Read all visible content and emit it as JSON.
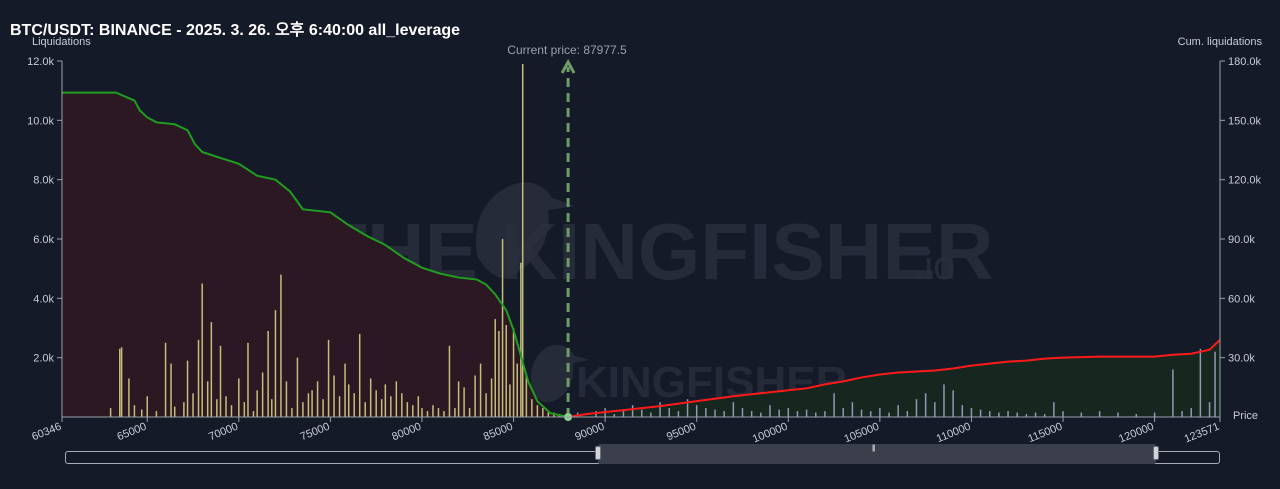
{
  "header": {
    "title": "BTC/USDT: BINANCE - 2025. 3. 26. 오후 6:40:00 all_leverage"
  },
  "watermark": {
    "brand": "THE KINGFISHER",
    "suffix": ".io",
    "small": "KINGFISHER"
  },
  "chart_data": {
    "type": "bar",
    "title": "BTC/USDT: BINANCE - 2025. 3. 26. 오후 6:40:00 all_leverage",
    "xlabel": "Price",
    "ylabel": "Liquidations",
    "y2label": "Cum. liquidations",
    "xlim": [
      60346,
      123571
    ],
    "ylim": [
      0,
      12000
    ],
    "y2lim": [
      0,
      180000
    ],
    "x_ticks": [
      "60346",
      "65000",
      "70000",
      "75000",
      "80000",
      "85000",
      "90000",
      "95000",
      "100000",
      "105000",
      "110000",
      "115000",
      "120000",
      "123571"
    ],
    "x_tick_values": [
      60346,
      65000,
      70000,
      75000,
      80000,
      85000,
      90000,
      95000,
      100000,
      105000,
      110000,
      115000,
      120000,
      123571
    ],
    "y_ticks": [
      "2.0k",
      "4.0k",
      "6.0k",
      "8.0k",
      "10.0k",
      "12.0k"
    ],
    "y_tick_values": [
      2000,
      4000,
      6000,
      8000,
      10000,
      12000
    ],
    "y2_ticks": [
      "30.0k",
      "60.0k",
      "90.0k",
      "120.0k",
      "150.0k",
      "180.0k"
    ],
    "y2_tick_values": [
      30000,
      60000,
      90000,
      120000,
      150000,
      180000
    ],
    "current_price": 87977.5,
    "current_price_label": "Current price: 87977.5",
    "grid": false,
    "long_bars": [
      [
        63000,
        300
      ],
      [
        63500,
        2300
      ],
      [
        63600,
        2350
      ],
      [
        64000,
        1300
      ],
      [
        64300,
        400
      ],
      [
        64700,
        250
      ],
      [
        65000,
        700
      ],
      [
        65500,
        200
      ],
      [
        66000,
        2500
      ],
      [
        66300,
        1800
      ],
      [
        66500,
        350
      ],
      [
        67000,
        500
      ],
      [
        67200,
        1900
      ],
      [
        67500,
        800
      ],
      [
        67800,
        2600
      ],
      [
        68000,
        4500
      ],
      [
        68300,
        1200
      ],
      [
        68500,
        3200
      ],
      [
        68800,
        600
      ],
      [
        69000,
        2400
      ],
      [
        69300,
        700
      ],
      [
        69600,
        400
      ],
      [
        70000,
        1300
      ],
      [
        70300,
        500
      ],
      [
        70500,
        2500
      ],
      [
        70800,
        200
      ],
      [
        71000,
        900
      ],
      [
        71300,
        1500
      ],
      [
        71600,
        2900
      ],
      [
        71800,
        600
      ],
      [
        72000,
        3600
      ],
      [
        72300,
        4800
      ],
      [
        72600,
        1200
      ],
      [
        72900,
        300
      ],
      [
        73200,
        2000
      ],
      [
        73500,
        500
      ],
      [
        73800,
        800
      ],
      [
        74000,
        900
      ],
      [
        74300,
        1200
      ],
      [
        74600,
        600
      ],
      [
        74900,
        2600
      ],
      [
        75200,
        1400
      ],
      [
        75500,
        700
      ],
      [
        75800,
        1800
      ],
      [
        76000,
        1100
      ],
      [
        76300,
        800
      ],
      [
        76600,
        2800
      ],
      [
        76900,
        500
      ],
      [
        77200,
        1300
      ],
      [
        77500,
        900
      ],
      [
        77800,
        600
      ],
      [
        78000,
        1100
      ],
      [
        78300,
        700
      ],
      [
        78600,
        1200
      ],
      [
        78900,
        800
      ],
      [
        79200,
        500
      ],
      [
        79500,
        400
      ],
      [
        79800,
        700
      ],
      [
        80000,
        300
      ],
      [
        80300,
        200
      ],
      [
        80600,
        400
      ],
      [
        80900,
        300
      ],
      [
        81200,
        200
      ],
      [
        81500,
        2400
      ],
      [
        81800,
        300
      ],
      [
        82000,
        1200
      ],
      [
        82300,
        1000
      ],
      [
        82600,
        300
      ],
      [
        82900,
        1400
      ],
      [
        83200,
        1800
      ],
      [
        83500,
        800
      ],
      [
        83800,
        1300
      ],
      [
        84000,
        3300
      ],
      [
        84200,
        2900
      ],
      [
        84400,
        6000
      ],
      [
        84600,
        3100
      ],
      [
        84800,
        1100
      ],
      [
        85000,
        3000
      ],
      [
        85200,
        1800
      ],
      [
        85400,
        5200
      ],
      [
        85500,
        11900
      ],
      [
        85700,
        1400
      ],
      [
        86000,
        600
      ],
      [
        86300,
        400
      ],
      [
        86600,
        300
      ],
      [
        86900,
        200
      ],
      [
        87200,
        150
      ],
      [
        87500,
        100
      ]
    ],
    "short_bars": [
      [
        88500,
        150
      ],
      [
        89500,
        200
      ],
      [
        90000,
        300
      ],
      [
        90500,
        100
      ],
      [
        91000,
        200
      ],
      [
        91500,
        400
      ],
      [
        92000,
        250
      ],
      [
        92500,
        150
      ],
      [
        93000,
        500
      ],
      [
        93500,
        300
      ],
      [
        94000,
        200
      ],
      [
        94500,
        600
      ],
      [
        95000,
        400
      ],
      [
        95500,
        300
      ],
      [
        96000,
        250
      ],
      [
        96500,
        200
      ],
      [
        97000,
        500
      ],
      [
        97500,
        300
      ],
      [
        98000,
        200
      ],
      [
        98500,
        150
      ],
      [
        99000,
        400
      ],
      [
        99500,
        250
      ],
      [
        100000,
        300
      ],
      [
        100500,
        200
      ],
      [
        101000,
        250
      ],
      [
        101500,
        150
      ],
      [
        102000,
        200
      ],
      [
        102500,
        800
      ],
      [
        103000,
        300
      ],
      [
        103500,
        500
      ],
      [
        104000,
        250
      ],
      [
        104500,
        200
      ],
      [
        105000,
        300
      ],
      [
        105500,
        150
      ],
      [
        106000,
        400
      ],
      [
        106500,
        200
      ],
      [
        107000,
        600
      ],
      [
        107500,
        800
      ],
      [
        108000,
        500
      ],
      [
        108500,
        1100
      ],
      [
        109000,
        900
      ],
      [
        109500,
        400
      ],
      [
        110000,
        300
      ],
      [
        110500,
        250
      ],
      [
        111000,
        200
      ],
      [
        111500,
        150
      ],
      [
        112000,
        200
      ],
      [
        112500,
        150
      ],
      [
        113000,
        100
      ],
      [
        113500,
        150
      ],
      [
        114000,
        100
      ],
      [
        114500,
        500
      ],
      [
        115000,
        200
      ],
      [
        116000,
        150
      ],
      [
        117000,
        200
      ],
      [
        118000,
        150
      ],
      [
        119000,
        100
      ],
      [
        120000,
        150
      ],
      [
        121000,
        1600
      ],
      [
        121500,
        200
      ],
      [
        122000,
        300
      ],
      [
        122500,
        2300
      ],
      [
        123000,
        500
      ],
      [
        123300,
        2200
      ]
    ],
    "series": [
      {
        "name": "long_cumulative",
        "color": "#1f9e1f",
        "points": [
          [
            60346,
            164000
          ],
          [
            63300,
            164000
          ],
          [
            64300,
            160000
          ],
          [
            64600,
            155000
          ],
          [
            65000,
            151500
          ],
          [
            65500,
            149000
          ],
          [
            66500,
            148000
          ],
          [
            67200,
            145000
          ],
          [
            67600,
            138000
          ],
          [
            68000,
            134000
          ],
          [
            69000,
            131000
          ],
          [
            70000,
            128000
          ],
          [
            71000,
            122000
          ],
          [
            72000,
            120000
          ],
          [
            72800,
            114000
          ],
          [
            73500,
            105000
          ],
          [
            75000,
            103500
          ],
          [
            76000,
            97000
          ],
          [
            77000,
            91500
          ],
          [
            78000,
            87000
          ],
          [
            79000,
            80500
          ],
          [
            80000,
            75500
          ],
          [
            81000,
            72500
          ],
          [
            82000,
            70500
          ],
          [
            83000,
            69500
          ],
          [
            83500,
            67000
          ],
          [
            84000,
            62000
          ],
          [
            84600,
            54000
          ],
          [
            85000,
            44000
          ],
          [
            85400,
            31000
          ],
          [
            85800,
            18000
          ],
          [
            86300,
            8000
          ],
          [
            87000,
            2000
          ],
          [
            87977.5,
            0
          ]
        ]
      },
      {
        "name": "short_cumulative",
        "color": "#ff1a1a",
        "points": [
          [
            87977.5,
            0
          ],
          [
            89000,
            1500
          ],
          [
            91000,
            3500
          ],
          [
            93000,
            5500
          ],
          [
            95000,
            8000
          ],
          [
            97000,
            10500
          ],
          [
            99000,
            12500
          ],
          [
            100000,
            13500
          ],
          [
            101000,
            14500
          ],
          [
            102000,
            16500
          ],
          [
            103000,
            18000
          ],
          [
            104000,
            20000
          ],
          [
            105000,
            21500
          ],
          [
            106000,
            22500
          ],
          [
            107000,
            23000
          ],
          [
            108000,
            23500
          ],
          [
            109000,
            24500
          ],
          [
            110000,
            26000
          ],
          [
            111000,
            27000
          ],
          [
            112000,
            28000
          ],
          [
            113000,
            28500
          ],
          [
            114000,
            29500
          ],
          [
            115000,
            30000
          ],
          [
            117000,
            30500
          ],
          [
            120000,
            30500
          ],
          [
            121000,
            31500
          ],
          [
            122000,
            32000
          ],
          [
            123000,
            34000
          ],
          [
            123571,
            39000
          ]
        ]
      }
    ],
    "colors": {
      "long_fill": "#2c1822",
      "short_fill": "#16271f",
      "long_bar": "#c2bf7a",
      "short_bar": "#9297b5",
      "current_price_line": "#6e9b68"
    }
  }
}
